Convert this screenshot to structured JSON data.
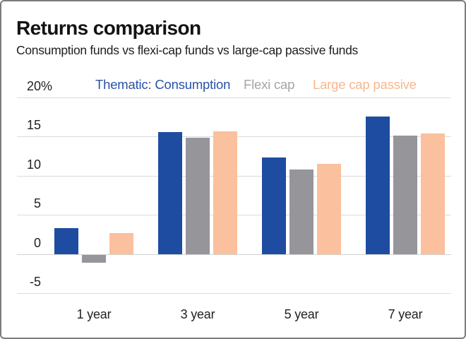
{
  "header": {
    "title": "Returns comparison",
    "subtitle": "Consumption funds vs flexi-cap funds vs large-cap passive funds"
  },
  "legend": [
    {
      "label": "Thematic: Consumption",
      "color": "#2a52a8"
    },
    {
      "label": "Flexi cap",
      "color": "#a5a5a8"
    },
    {
      "label": "Large cap passive",
      "color": "#f9b78e"
    }
  ],
  "chart_data": {
    "type": "bar",
    "title": "Returns comparison",
    "subtitle": "Consumption funds vs flexi-cap funds vs large-cap passive funds",
    "unit": "%",
    "categories": [
      "1 year",
      "3 year",
      "5 year",
      "7 year"
    ],
    "series": [
      {
        "name": "Thematic: Consumption",
        "color": "#1e4ca1",
        "values": [
          3.3,
          15.6,
          12.3,
          17.6
        ]
      },
      {
        "name": "Flexi cap",
        "color": "#95959a",
        "values": [
          -1.0,
          14.9,
          10.8,
          15.1
        ]
      },
      {
        "name": "Large cap passive",
        "color": "#fbc09d",
        "values": [
          2.7,
          15.7,
          11.5,
          15.4
        ]
      }
    ],
    "yticks": [
      20,
      15,
      10,
      5,
      0,
      -5
    ],
    "ytick_labels": [
      "20 %",
      "15",
      "10",
      "5",
      "0",
      "-5"
    ],
    "ylim": [
      -5,
      20
    ],
    "grid": true,
    "legend_position": "top"
  }
}
